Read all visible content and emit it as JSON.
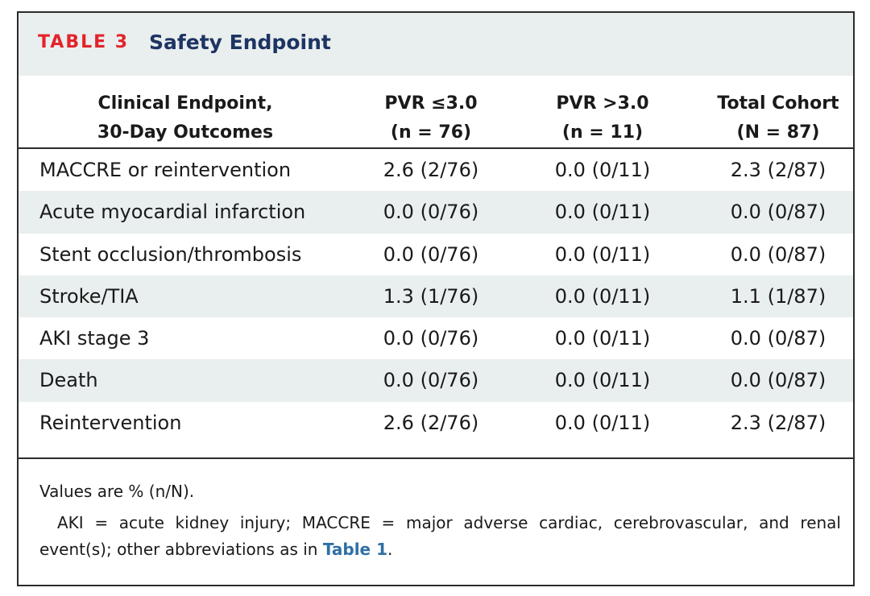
{
  "table": {
    "label": "TABLE 3",
    "title": "Safety Endpoint",
    "headers": [
      {
        "line1": "Clinical Endpoint,",
        "line2": "30-Day Outcomes"
      },
      {
        "line1": "PVR ≤3.0",
        "line2": "(n = 76)"
      },
      {
        "line1": "PVR >3.0",
        "line2": "(n = 11)"
      },
      {
        "line1": "Total Cohort",
        "line2": "(N = 87)"
      }
    ],
    "rows": [
      {
        "endpoint": "MACCRE or reintervention",
        "pvr_low": "2.6 (2/76)",
        "pvr_high": "0.0 (0/11)",
        "total": "2.3 (2/87)"
      },
      {
        "endpoint": "Acute myocardial infarction",
        "pvr_low": "0.0 (0/76)",
        "pvr_high": "0.0 (0/11)",
        "total": "0.0 (0/87)"
      },
      {
        "endpoint": "Stent occlusion/thrombosis",
        "pvr_low": "0.0 (0/76)",
        "pvr_high": "0.0 (0/11)",
        "total": "0.0 (0/87)"
      },
      {
        "endpoint": "Stroke/TIA",
        "pvr_low": "1.3 (1/76)",
        "pvr_high": "0.0 (0/11)",
        "total": "1.1 (1/87)"
      },
      {
        "endpoint": "AKI stage 3",
        "pvr_low": "0.0 (0/76)",
        "pvr_high": "0.0 (0/11)",
        "total": "0.0 (0/87)"
      },
      {
        "endpoint": "Death",
        "pvr_low": "0.0 (0/76)",
        "pvr_high": "0.0 (0/11)",
        "total": "0.0 (0/87)"
      },
      {
        "endpoint": "Reintervention",
        "pvr_low": "2.6 (2/76)",
        "pvr_high": "0.0 (0/11)",
        "total": "2.3 (2/87)"
      }
    ]
  },
  "footnotes": {
    "values_note": "Values are % (n/N).",
    "abbrev_text": "AKI = acute kidney injury; MACCRE = major adverse cardiac, cerebrovascular, and renal event(s); other abbreviations as in ",
    "abbrev_link": "Table 1",
    "abbrev_end": "."
  },
  "colors": {
    "label_red": "#e2232b",
    "title_navy": "#1d3463",
    "band_gray": "#e9eeee",
    "link_blue": "#2e6fa6"
  }
}
